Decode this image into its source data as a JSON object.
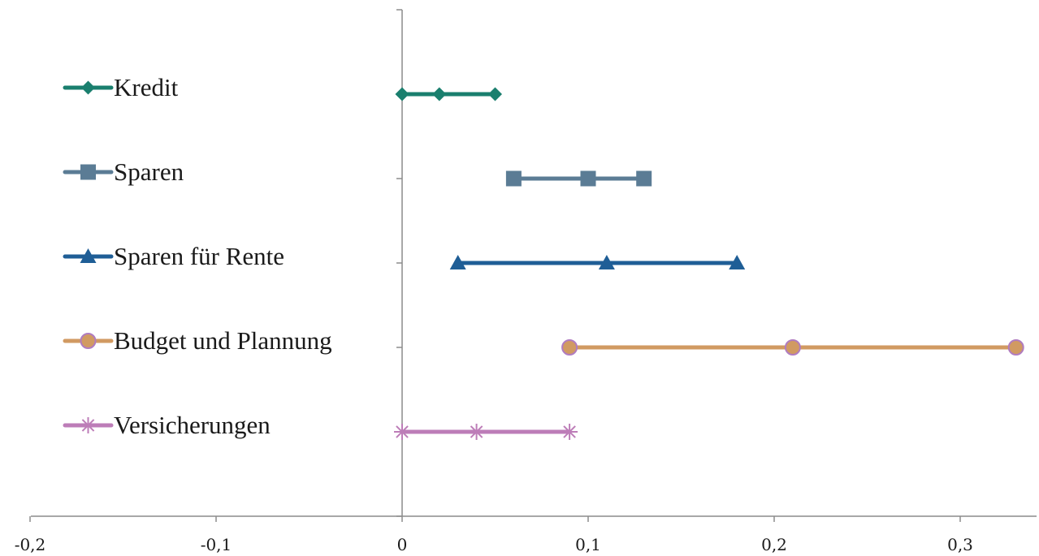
{
  "chart_data": {
    "type": "line",
    "title": "",
    "xlabel": "",
    "ylabel": "",
    "xlim": [
      -0.2,
      0.34
    ],
    "x_ticks": [
      -0.2,
      -0.1,
      0,
      0.1,
      0.2,
      0.3
    ],
    "x_tick_labels": [
      "-0,2",
      "-0,1",
      "0",
      "0,1",
      "0,2",
      "0,3"
    ],
    "grid": false,
    "legend_position": "left",
    "series": [
      {
        "name": "Kredit",
        "marker": "diamond",
        "color": "#1a7f6e",
        "x": [
          0,
          0.02,
          0.05
        ]
      },
      {
        "name": "Sparen",
        "marker": "square",
        "color": "#5b7c95",
        "x": [
          0.06,
          0.1,
          0.13
        ]
      },
      {
        "name": "Sparen für Rente",
        "marker": "triangle",
        "color": "#1f5e96",
        "x": [
          0.03,
          0.11,
          0.18
        ]
      },
      {
        "name": "Budget und Plannung",
        "marker": "circle",
        "color": "#d19a62",
        "marker_edge": "#b07cc0",
        "x": [
          0.09,
          0.21,
          0.33
        ]
      },
      {
        "name": "Versicherungen",
        "marker": "star",
        "color": "#bd7db8",
        "x": [
          0,
          0.04,
          0.09
        ]
      }
    ]
  }
}
